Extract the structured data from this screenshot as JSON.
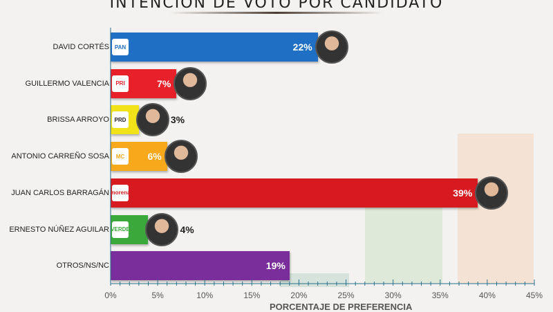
{
  "chart_data": {
    "type": "bar",
    "orientation": "horizontal",
    "title": "INTENCION DE VOTO POR CANDIDATO",
    "xlabel": "PORCENTAJE DE PREFERENCIA",
    "xlim": [
      0,
      45
    ],
    "ticks": [
      "0%",
      "5%",
      "10%",
      "15%",
      "20%",
      "25%",
      "30%",
      "35%",
      "40%",
      "45%"
    ],
    "categories": [
      "DAVID CORTÉS",
      "GUILLERMO VALENCIA",
      "BRISSA ARROYO",
      "ANTONIO CARREÑO SOSA",
      "JUAN CARLOS BARRAGÁN",
      "ERNESTO NÚÑEZ AGUILAR",
      "OTROS/NS/NC"
    ],
    "values": [
      22,
      7,
      3,
      6,
      39,
      4,
      19
    ],
    "labels": [
      "22%",
      "7%",
      "3%",
      "6%",
      "39%",
      "4%",
      "19%"
    ],
    "parties": [
      "PAN",
      "PRI",
      "PRD",
      "MC",
      "morena",
      "VERDE",
      ""
    ],
    "colors": [
      "#1f6fc4",
      "#e8202a",
      "#f2e21a",
      "#f7a81b",
      "#d71920",
      "#3aa83a",
      "#7a2e9c"
    ],
    "label_colors": [
      "#ffffff",
      "#ffffff",
      "#222222",
      "#ffffff",
      "#ffffff",
      "#222222",
      "#ffffff"
    ],
    "photos": [
      true,
      true,
      true,
      true,
      true,
      true,
      false
    ]
  }
}
